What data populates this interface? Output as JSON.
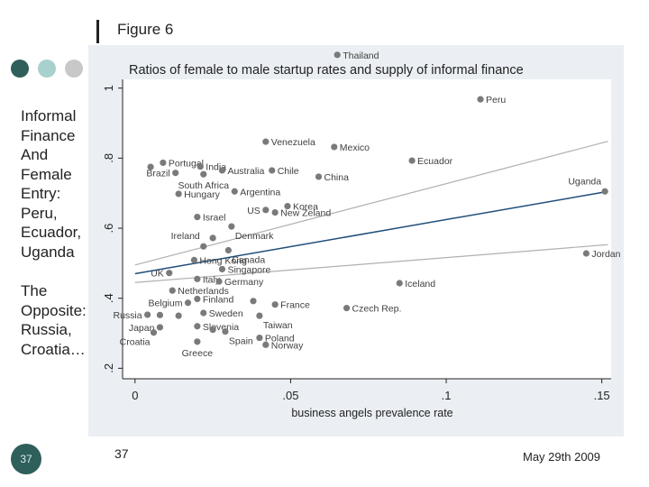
{
  "slide": {
    "title": "Figure 6",
    "side_text_1": "Informal\nFinance\nAnd\nFemale\nEntry:\nPeru,\nEcuador,\nUganda",
    "side_text_2": "The\nOpposite:\nRussia,\nCroatia…",
    "page_number": "37",
    "page_number_2": "37",
    "date": "May 29th 2009",
    "dot_colors": [
      "#2f5f5a",
      "#a8d0cc",
      "#c8c8c8"
    ]
  },
  "chart_data": {
    "type": "scatter",
    "title": "Ratios of female to male startup rates and supply of informal finance",
    "xlabel": "business angels prevalence rate",
    "ylabel": "",
    "xlim": [
      -0.004,
      0.153
    ],
    "ylim": [
      0.17,
      1.025
    ],
    "xticks": [
      {
        "v": 0,
        "label": "0"
      },
      {
        "v": 0.05,
        "label": ".05"
      },
      {
        "v": 0.1,
        "label": ".1"
      },
      {
        "v": 0.15,
        "label": ".15"
      }
    ],
    "yticks": [
      {
        "v": 0.2,
        "label": ".2"
      },
      {
        "v": 0.4,
        "label": ".4"
      },
      {
        "v": 0.6,
        "label": ".6"
      },
      {
        "v": 0.8,
        "label": ".8"
      },
      {
        "v": 1.0,
        "label": "1"
      }
    ],
    "grid": false,
    "colors": {
      "bg": "#ebeff3",
      "point": "#7a7a7a",
      "label": "#3f3f3f",
      "fit": "#1f4e79",
      "ci": "#b0b0b0"
    },
    "fit_line": {
      "x": [
        0,
        0.152
      ],
      "y": [
        0.47,
        0.705
      ]
    },
    "ci_upper": {
      "x": [
        0,
        0.152
      ],
      "y": [
        0.495,
        0.848
      ]
    },
    "ci_lower": {
      "x": [
        0,
        0.152
      ],
      "y": [
        0.445,
        0.553
      ]
    },
    "points": [
      {
        "label": "Thailand",
        "x": 0.065,
        "y": 1.095,
        "lp": "r"
      },
      {
        "label": "Peru",
        "x": 0.111,
        "y": 0.968,
        "lp": "r"
      },
      {
        "label": "Venezuela",
        "x": 0.042,
        "y": 0.847,
        "lp": "r"
      },
      {
        "label": "Mexico",
        "x": 0.064,
        "y": 0.832,
        "lp": "r"
      },
      {
        "label": "Ecuador",
        "x": 0.089,
        "y": 0.793,
        "lp": "r"
      },
      {
        "label": "Portugal",
        "x": 0.009,
        "y": 0.787,
        "lp": "r"
      },
      {
        "label": "",
        "x": 0.005,
        "y": 0.775,
        "lp": "r"
      },
      {
        "label": "India",
        "x": 0.021,
        "y": 0.776,
        "lp": "r"
      },
      {
        "label": "Chile",
        "x": 0.044,
        "y": 0.765,
        "lp": "r"
      },
      {
        "label": "Australia",
        "x": 0.028,
        "y": 0.765,
        "lp": "r"
      },
      {
        "label": "Brazil",
        "x": 0.013,
        "y": 0.758,
        "lp": "l"
      },
      {
        "label": "South Africa",
        "x": 0.022,
        "y": 0.754,
        "lp": "b"
      },
      {
        "label": "China",
        "x": 0.059,
        "y": 0.747,
        "lp": "r"
      },
      {
        "label": "Uganda",
        "x": 0.151,
        "y": 0.705,
        "lp": "al"
      },
      {
        "label": "Hungary",
        "x": 0.014,
        "y": 0.698,
        "lp": "r"
      },
      {
        "label": "Argentina",
        "x": 0.032,
        "y": 0.705,
        "lp": "r"
      },
      {
        "label": "Korea",
        "x": 0.049,
        "y": 0.663,
        "lp": "r"
      },
      {
        "label": "US",
        "x": 0.042,
        "y": 0.652,
        "lp": "l"
      },
      {
        "label": "New Zeland",
        "x": 0.045,
        "y": 0.645,
        "lp": "r"
      },
      {
        "label": "Israel",
        "x": 0.02,
        "y": 0.632,
        "lp": "r"
      },
      {
        "label": "Denmark",
        "x": 0.031,
        "y": 0.605,
        "lp": "br"
      },
      {
        "label": "",
        "x": 0.025,
        "y": 0.572,
        "lp": "r"
      },
      {
        "label": "Jordan",
        "x": 0.145,
        "y": 0.528,
        "lp": "r"
      },
      {
        "label": "Ireland",
        "x": 0.022,
        "y": 0.548,
        "lp": "al"
      },
      {
        "label": "Canada",
        "x": 0.03,
        "y": 0.537,
        "lp": "br"
      },
      {
        "label": "Hong Kong",
        "x": 0.019,
        "y": 0.509,
        "lp": "r"
      },
      {
        "label": "Singapore",
        "x": 0.028,
        "y": 0.483,
        "lp": "r"
      },
      {
        "label": "UK",
        "x": 0.011,
        "y": 0.472,
        "lp": "l"
      },
      {
        "label": "Italy",
        "x": 0.02,
        "y": 0.455,
        "lp": "r"
      },
      {
        "label": "Germany",
        "x": 0.027,
        "y": 0.448,
        "lp": "r"
      },
      {
        "label": "Iceland",
        "x": 0.085,
        "y": 0.443,
        "lp": "r"
      },
      {
        "label": "Netherlands",
        "x": 0.012,
        "y": 0.422,
        "lp": "r"
      },
      {
        "label": "Finland",
        "x": 0.02,
        "y": 0.398,
        "lp": "r"
      },
      {
        "label": "Belgium",
        "x": 0.017,
        "y": 0.387,
        "lp": "l"
      },
      {
        "label": "France",
        "x": 0.045,
        "y": 0.382,
        "lp": "r"
      },
      {
        "label": "Czech Rep.",
        "x": 0.068,
        "y": 0.372,
        "lp": "r"
      },
      {
        "label": "",
        "x": 0.038,
        "y": 0.392,
        "lp": "r"
      },
      {
        "label": "Russia",
        "x": 0.004,
        "y": 0.353,
        "lp": "l"
      },
      {
        "label": "Sweden",
        "x": 0.022,
        "y": 0.358,
        "lp": "r"
      },
      {
        "label": "",
        "x": 0.008,
        "y": 0.352,
        "lp": "r"
      },
      {
        "label": "",
        "x": 0.014,
        "y": 0.35,
        "lp": "r"
      },
      {
        "label": "Taiwan",
        "x": 0.04,
        "y": 0.35,
        "lp": "br"
      },
      {
        "label": "Slovenia",
        "x": 0.02,
        "y": 0.32,
        "lp": "r"
      },
      {
        "label": "Japan",
        "x": 0.008,
        "y": 0.317,
        "lp": "l"
      },
      {
        "label": "Spain",
        "x": 0.029,
        "y": 0.305,
        "lp": "br"
      },
      {
        "label": "",
        "x": 0.025,
        "y": 0.31,
        "lp": "r"
      },
      {
        "label": "Poland",
        "x": 0.04,
        "y": 0.287,
        "lp": "r"
      },
      {
        "label": "Croatia",
        "x": 0.006,
        "y": 0.302,
        "lp": "bl"
      },
      {
        "label": "Greece",
        "x": 0.02,
        "y": 0.276,
        "lp": "b"
      },
      {
        "label": "Norway",
        "x": 0.042,
        "y": 0.267,
        "lp": "r"
      }
    ]
  }
}
